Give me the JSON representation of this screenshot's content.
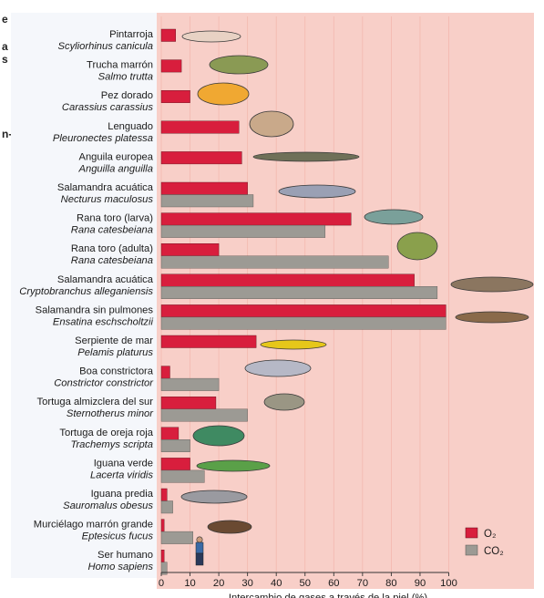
{
  "margin_fragments": [
    "e",
    "a",
    "s",
    "n-"
  ],
  "legend": {
    "o2": "O₂",
    "co2": "CO₂"
  },
  "colors": {
    "o2": "#d81e3d",
    "co2": "#9c9a94",
    "background": "#f8cfc8"
  },
  "chart_data": {
    "type": "bar",
    "orientation": "horizontal",
    "xlabel": "Intercambio de gases a través de la piel (%)",
    "xlim": [
      0,
      100
    ],
    "xticks": [
      "0",
      "10",
      "20",
      "30",
      "40",
      "50",
      "60",
      "70",
      "80",
      "90",
      "100"
    ],
    "legend_position": "bottom-right",
    "categories": [
      {
        "common": "Pintarroja",
        "scientific": "Scyliorhinus canicula"
      },
      {
        "common": "Trucha marrón",
        "scientific": "Salmo trutta"
      },
      {
        "common": "Pez dorado",
        "scientific": "Carassius carassius"
      },
      {
        "common": "Lenguado",
        "scientific": "Pleuronectes platessa"
      },
      {
        "common": "Anguila europea",
        "scientific": "Anguilla anguilla"
      },
      {
        "common": "Salamandra acuática",
        "scientific": "Necturus maculosus"
      },
      {
        "common": "Rana toro (larva)",
        "scientific": "Rana catesbeiana"
      },
      {
        "common": "Rana toro (adulta)",
        "scientific": "Rana catesbeiana"
      },
      {
        "common": "Salamandra acuática",
        "scientific": "Cryptobranchus alleganiensis"
      },
      {
        "common": "Salamandra sin pulmones",
        "scientific": "Ensatina eschscholtzii"
      },
      {
        "common": "Serpiente de mar",
        "scientific": "Pelamis platurus"
      },
      {
        "common": "Boa constrictora",
        "scientific": "Constrictor constrictor"
      },
      {
        "common": "Tortuga almizclera del sur",
        "scientific": "Sternotherus minor"
      },
      {
        "common": "Tortuga de oreja roja",
        "scientific": "Trachemys scripta"
      },
      {
        "common": "Iguana verde",
        "scientific": "Lacerta viridis"
      },
      {
        "common": "Iguana predia",
        "scientific": "Sauromalus obesus"
      },
      {
        "common": "Murciélago marrón grande",
        "scientific": "Eptesicus fucus"
      },
      {
        "common": "Ser humano",
        "scientific": "Homo sapiens"
      }
    ],
    "series": [
      {
        "name": "O₂",
        "color": "#d81e3d",
        "values": [
          5,
          7,
          10,
          27,
          28,
          30,
          66,
          20,
          88,
          99,
          33,
          3,
          19,
          6,
          10,
          2,
          1,
          1
        ]
      },
      {
        "name": "CO₂",
        "color": "#9c9a94",
        "values": [
          null,
          null,
          null,
          null,
          null,
          32,
          57,
          79,
          96,
          99,
          null,
          20,
          30,
          10,
          15,
          4,
          11,
          2
        ]
      }
    ]
  }
}
